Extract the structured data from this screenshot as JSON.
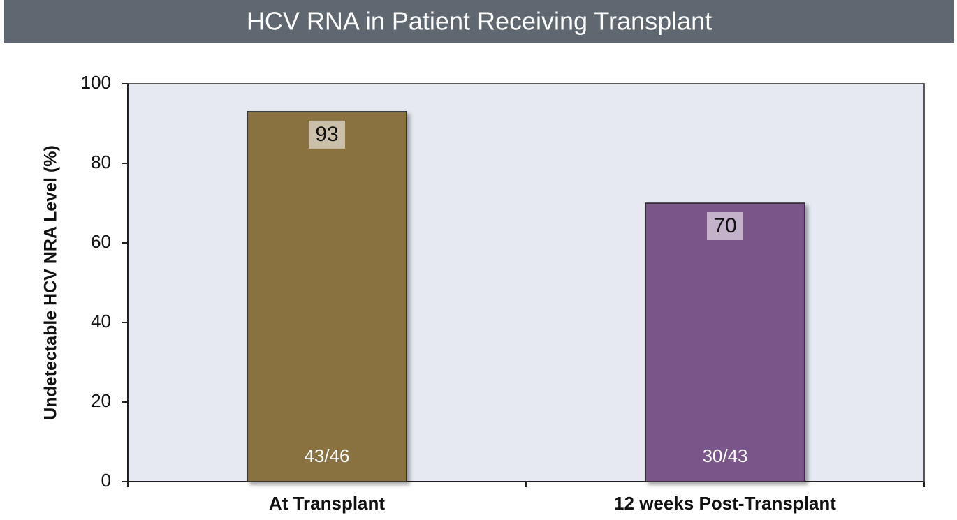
{
  "chart_data": {
    "type": "bar",
    "title": "HCV RNA in Patient Receiving Transplant",
    "y_label": "Undetectable HCV NRA Level (%)",
    "categories": [
      "At Transplant",
      "12 weeks Post-Transplant"
    ],
    "values": [
      93,
      70
    ],
    "colors": [
      "#8a7140",
      "#7a5489"
    ],
    "annotations": [
      "43/46",
      "30/43"
    ],
    "ylim": [
      0,
      100
    ],
    "yticks": [
      0,
      20,
      40,
      60,
      80,
      100
    ],
    "grid": false
  }
}
